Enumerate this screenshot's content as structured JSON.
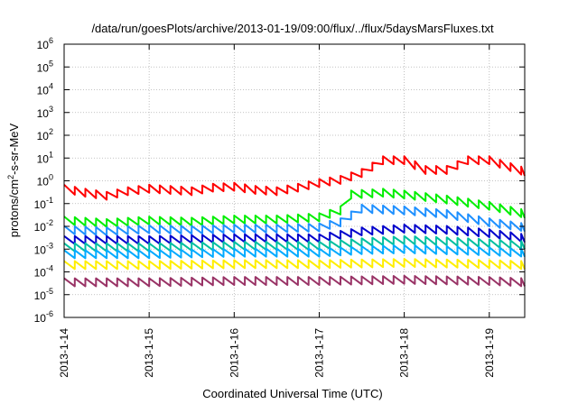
{
  "chart_data": {
    "type": "line",
    "title": "/data/run/goesPlots/archive/2013-01-19/09:00/flux/../flux/5daysMarsFluxes.txt",
    "xlabel": "Coordinated Universal Time (UTC)",
    "ylabel": {
      "pre": "protons/cm",
      "sup": "2",
      "post": "-s-sr-MeV"
    },
    "y_scale": "log",
    "ylim_exponents": [
      -6,
      6
    ],
    "ytick_exponents": [
      -6,
      -5,
      -4,
      -3,
      -2,
      -1,
      0,
      1,
      2,
      3,
      4,
      5,
      6
    ],
    "ytick_base": "10",
    "x_unit": "days",
    "xlim": [
      "2013-01-14",
      "2013-01-19 10:00"
    ],
    "xticks": [
      "2013-1-14",
      "2013-1-15",
      "2013-1-16",
      "2013-1-17",
      "2013-1-18",
      "2013-1-19"
    ],
    "grid": true,
    "sawtooth_period_hours": 3,
    "series": [
      {
        "color": "#ff0000",
        "values": [
          [
            "2013-01-14 00:00",
            0.45
          ],
          [
            "2013-01-14 06:00",
            0.3
          ],
          [
            "2013-01-14 12:00",
            0.22
          ],
          [
            "2013-01-14 18:00",
            0.35
          ],
          [
            "2013-01-15 00:00",
            0.45
          ],
          [
            "2013-01-15 06:00",
            0.4
          ],
          [
            "2013-01-15 12:00",
            0.35
          ],
          [
            "2013-01-15 18:00",
            0.5
          ],
          [
            "2013-01-16 00:00",
            0.55
          ],
          [
            "2013-01-16 06:00",
            0.4
          ],
          [
            "2013-01-16 12:00",
            0.35
          ],
          [
            "2013-01-16 18:00",
            0.5
          ],
          [
            "2013-01-17 00:00",
            0.8
          ],
          [
            "2013-01-17 06:00",
            1.1
          ],
          [
            "2013-01-17 12:00",
            2.2
          ],
          [
            "2013-01-17 18:00",
            8
          ],
          [
            "2013-01-18 00:00",
            8
          ],
          [
            "2013-01-18 06:00",
            3
          ],
          [
            "2013-01-18 12:00",
            3
          ],
          [
            "2013-01-18 18:00",
            8
          ],
          [
            "2013-01-19 00:00",
            8
          ],
          [
            "2013-01-19 06:00",
            4
          ],
          [
            "2013-01-19 10:00",
            2.5
          ]
        ]
      },
      {
        "color": "#00ee00",
        "values": [
          [
            "2013-01-14 00:00",
            0.018
          ],
          [
            "2013-01-14 12:00",
            0.014
          ],
          [
            "2013-01-15 00:00",
            0.018
          ],
          [
            "2013-01-15 12:00",
            0.016
          ],
          [
            "2013-01-16 00:00",
            0.02
          ],
          [
            "2013-01-16 12:00",
            0.02
          ],
          [
            "2013-01-17 00:00",
            0.025
          ],
          [
            "2013-01-17 06:00",
            0.05
          ],
          [
            "2013-01-17 09:00",
            0.25
          ],
          [
            "2013-01-17 18:00",
            0.3
          ],
          [
            "2013-01-18 00:00",
            0.25
          ],
          [
            "2013-01-18 12:00",
            0.15
          ],
          [
            "2013-01-19 00:00",
            0.08
          ],
          [
            "2013-01-19 10:00",
            0.035
          ]
        ]
      },
      {
        "color": "#1e90ff",
        "values": [
          [
            "2013-01-14 00:00",
            0.007
          ],
          [
            "2013-01-14 12:00",
            0.006
          ],
          [
            "2013-01-15 00:00",
            0.0075
          ],
          [
            "2013-01-15 12:00",
            0.007
          ],
          [
            "2013-01-16 00:00",
            0.008
          ],
          [
            "2013-01-16 12:00",
            0.008
          ],
          [
            "2013-01-17 00:00",
            0.009
          ],
          [
            "2013-01-17 06:00",
            0.015
          ],
          [
            "2013-01-17 12:00",
            0.06
          ],
          [
            "2013-01-18 00:00",
            0.05
          ],
          [
            "2013-01-18 12:00",
            0.035
          ],
          [
            "2013-01-19 00:00",
            0.015
          ],
          [
            "2013-01-19 10:00",
            0.009
          ]
        ]
      },
      {
        "color": "#0000cc",
        "values": [
          [
            "2013-01-14 00:00",
            0.0025
          ],
          [
            "2013-01-15 00:00",
            0.0025
          ],
          [
            "2013-01-16 00:00",
            0.003
          ],
          [
            "2013-01-17 00:00",
            0.003
          ],
          [
            "2013-01-17 12:00",
            0.006
          ],
          [
            "2013-01-18 00:00",
            0.008
          ],
          [
            "2013-01-18 12:00",
            0.007
          ],
          [
            "2013-01-19 00:00",
            0.005
          ],
          [
            "2013-01-19 10:00",
            0.003
          ]
        ]
      },
      {
        "color": "#00bfa0",
        "values": [
          [
            "2013-01-14 00:00",
            0.0012
          ],
          [
            "2013-01-15 00:00",
            0.0012
          ],
          [
            "2013-01-16 00:00",
            0.0014
          ],
          [
            "2013-01-17 00:00",
            0.0014
          ],
          [
            "2013-01-17 12:00",
            0.002
          ],
          [
            "2013-01-18 00:00",
            0.0025
          ],
          [
            "2013-01-18 12:00",
            0.0022
          ],
          [
            "2013-01-19 00:00",
            0.0018
          ],
          [
            "2013-01-19 10:00",
            0.0015
          ]
        ]
      },
      {
        "color": "#00aaff",
        "values": [
          [
            "2013-01-14 00:00",
            0.0006
          ],
          [
            "2013-01-15 00:00",
            0.0006
          ],
          [
            "2013-01-16 00:00",
            0.0007
          ],
          [
            "2013-01-17 00:00",
            0.0007
          ],
          [
            "2013-01-17 12:00",
            0.0009
          ],
          [
            "2013-01-18 00:00",
            0.001
          ],
          [
            "2013-01-19 00:00",
            0.0008
          ],
          [
            "2013-01-19 10:00",
            0.0007
          ]
        ]
      },
      {
        "color": "#ffee00",
        "values": [
          [
            "2013-01-14 00:00",
            0.0002
          ],
          [
            "2013-01-15 00:00",
            0.0002
          ],
          [
            "2013-01-16 00:00",
            0.00022
          ],
          [
            "2013-01-17 00:00",
            0.00022
          ],
          [
            "2013-01-18 00:00",
            0.00025
          ],
          [
            "2013-01-19 00:00",
            0.00022
          ],
          [
            "2013-01-19 10:00",
            0.0002
          ]
        ]
      },
      {
        "color": "#993366",
        "values": [
          [
            "2013-01-14 00:00",
            3.5e-05
          ],
          [
            "2013-01-15 00:00",
            3.5e-05
          ],
          [
            "2013-01-16 00:00",
            4e-05
          ],
          [
            "2013-01-17 00:00",
            4e-05
          ],
          [
            "2013-01-18 00:00",
            4.5e-05
          ],
          [
            "2013-01-19 00:00",
            4e-05
          ],
          [
            "2013-01-19 10:00",
            3.5e-05
          ]
        ]
      }
    ]
  }
}
